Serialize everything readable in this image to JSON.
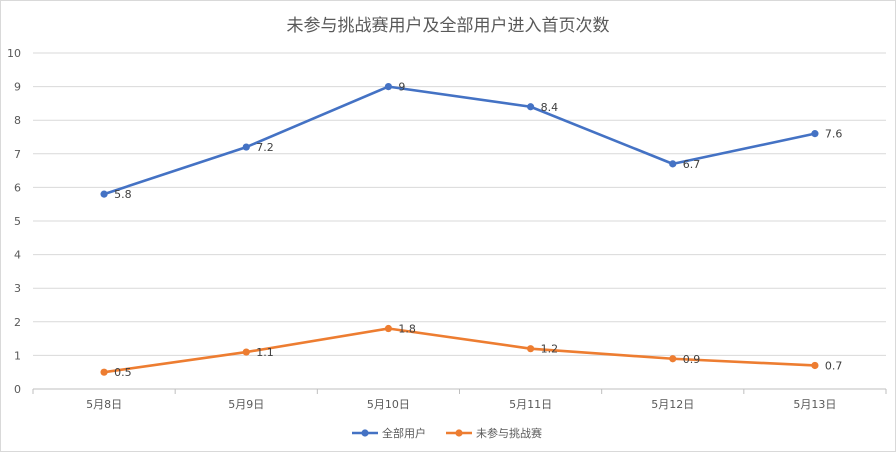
{
  "chart_data": {
    "type": "line",
    "title": "未参与挑战赛用户及全部用户进入首页次数",
    "xlabel": "",
    "ylabel": "",
    "categories": [
      "5月8日",
      "5月9日",
      "5月10日",
      "5月11日",
      "5月12日",
      "5月13日"
    ],
    "ylim": [
      0,
      10
    ],
    "yticks": [
      0,
      1,
      2,
      3,
      4,
      5,
      6,
      7,
      8,
      9,
      10
    ],
    "grid": true,
    "legend_position": "bottom",
    "series": [
      {
        "name": "全部用户",
        "color": "#4472C4",
        "values": [
          5.8,
          7.2,
          9,
          8.4,
          6.7,
          7.6
        ]
      },
      {
        "name": "未参与挑战赛",
        "color": "#ED7D31",
        "values": [
          0.5,
          1.1,
          1.8,
          1.2,
          0.9,
          0.7
        ]
      }
    ]
  }
}
